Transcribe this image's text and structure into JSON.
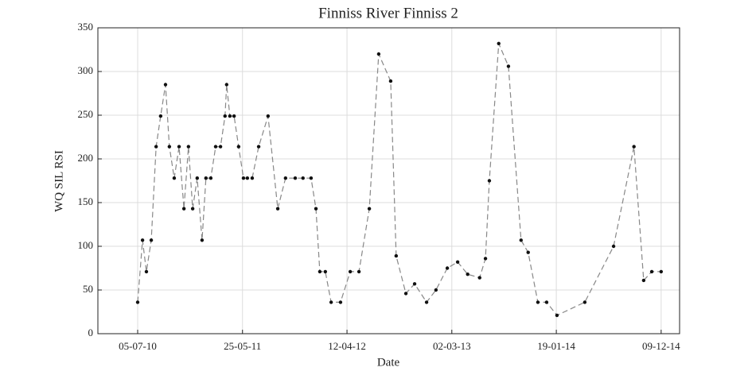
{
  "chart_data": {
    "type": "line",
    "title": "Finniss River Finniss 2",
    "xlabel": "Date",
    "ylabel": "WQ SIL RSI",
    "x": [
      "2010-07-05",
      "2010-07-20",
      "2010-08-01",
      "2010-08-16",
      "2010-08-31",
      "2010-09-14",
      "2010-09-29",
      "2010-10-11",
      "2010-10-26",
      "2010-11-10",
      "2010-11-25",
      "2010-12-09",
      "2010-12-22",
      "2011-01-05",
      "2011-01-20",
      "2011-02-01",
      "2011-02-16",
      "2011-03-03",
      "2011-03-18",
      "2011-04-01",
      "2011-04-06",
      "2011-04-16",
      "2011-04-29",
      "2011-05-13",
      "2011-05-28",
      "2011-06-09",
      "2011-06-24",
      "2011-07-14",
      "2011-08-12",
      "2011-09-11",
      "2011-10-05",
      "2011-11-04",
      "2011-11-28",
      "2011-12-23",
      "2012-01-07",
      "2012-01-19",
      "2012-02-05",
      "2012-02-23",
      "2012-03-23",
      "2012-04-22",
      "2012-05-19",
      "2012-06-20",
      "2012-07-19",
      "2012-08-25",
      "2012-09-11",
      "2012-10-11",
      "2012-11-07",
      "2012-12-14",
      "2013-01-12",
      "2013-02-16",
      "2013-03-20",
      "2013-04-20",
      "2013-05-27",
      "2013-06-14",
      "2013-06-26",
      "2013-07-25",
      "2013-08-24",
      "2013-10-02",
      "2013-10-24",
      "2013-11-23",
      "2013-12-20",
      "2014-01-21",
      "2014-04-17",
      "2014-07-15",
      "2014-09-16",
      "2014-10-16",
      "2014-11-10",
      "2014-12-09"
    ],
    "series": [
      {
        "name": "WQ SIL RSI",
        "color": "#888888",
        "marker_color": "#111111",
        "values": [
          36,
          107,
          71,
          107,
          214,
          249,
          285,
          214,
          178,
          214,
          143,
          214,
          143,
          178,
          107,
          178,
          178,
          214,
          214,
          249,
          285,
          249,
          249,
          214,
          178,
          178,
          178,
          214,
          249,
          143,
          178,
          178,
          178,
          178,
          143,
          71,
          71,
          36,
          36,
          71,
          71,
          143,
          320,
          289,
          89,
          46,
          57,
          36,
          50,
          75,
          82,
          68,
          64,
          86,
          175,
          332,
          306,
          107,
          93,
          36,
          36,
          21,
          36,
          100,
          214,
          61,
          71,
          71
        ]
      }
    ],
    "xlim": [
      "2010-03-04",
      "2015-02-04"
    ],
    "xticks": [
      {
        "value": "2010-07-05",
        "label": "05-07-10"
      },
      {
        "value": "2011-05-25",
        "label": "25-05-11"
      },
      {
        "value": "2012-04-12",
        "label": "12-04-12"
      },
      {
        "value": "2013-03-02",
        "label": "02-03-13"
      },
      {
        "value": "2014-01-19",
        "label": "19-01-14"
      },
      {
        "value": "2014-12-09",
        "label": "09-12-14"
      }
    ],
    "ylim": [
      0,
      350
    ],
    "yticks": [
      0,
      50,
      100,
      150,
      200,
      250,
      300,
      350
    ],
    "grid": true
  }
}
